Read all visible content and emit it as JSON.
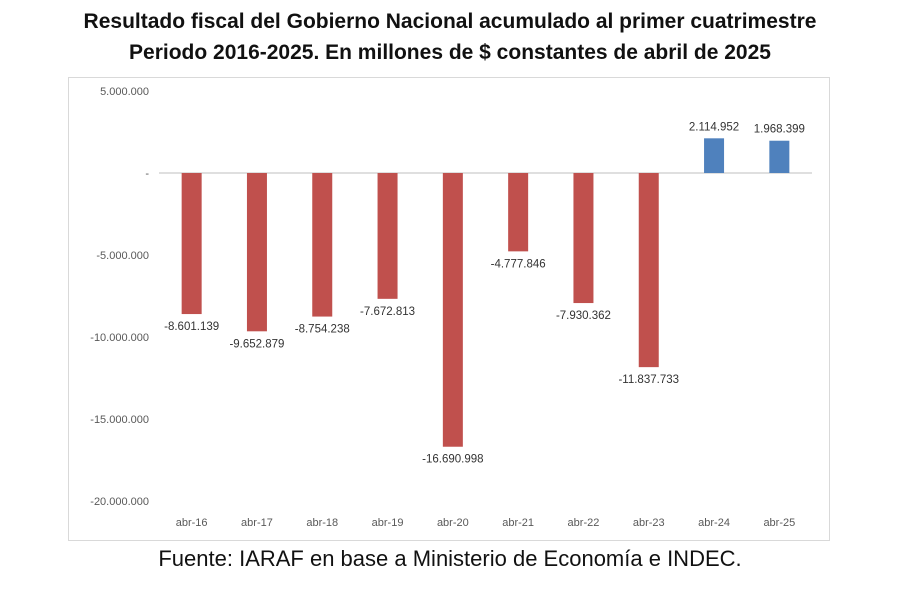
{
  "title": {
    "line1": "Resultado fiscal del Gobierno Nacional acumulado al primer cuatrimestre",
    "line2": "Periodo 2016-2025. En millones de $ constantes de abril de 2025"
  },
  "source": "Fuente: IARAF en base a Ministerio de Economía e INDEC.",
  "chart_data": {
    "type": "bar",
    "categories": [
      "abr-16",
      "abr-17",
      "abr-18",
      "abr-19",
      "abr-20",
      "abr-21",
      "abr-22",
      "abr-23",
      "abr-24",
      "abr-25"
    ],
    "values": [
      -8601139,
      -9652879,
      -8754238,
      -7672813,
      -16690998,
      -4777846,
      -7930362,
      -11837733,
      2114952,
      1968399
    ],
    "data_labels": [
      "-8.601.139",
      "-9.652.879",
      "-8.754.238",
      "-7.672.813",
      "-16.690.998",
      "-4.777.846",
      "-7.930.362",
      "-11.837.733",
      "2.114.952",
      "1.968.399"
    ],
    "yticks": [
      5000000,
      0,
      -5000000,
      -10000000,
      -15000000,
      -20000000
    ],
    "ytick_labels": [
      "5.000.000",
      "-",
      "-5.000.000",
      "-10.000.000",
      "-15.000.000",
      "-20.000.000"
    ],
    "ylim": [
      -20000000,
      5000000
    ],
    "xlabel": "",
    "ylabel": "",
    "grid": false,
    "colors": {
      "negative": "#c0504d",
      "positive": "#4f81bd"
    }
  }
}
